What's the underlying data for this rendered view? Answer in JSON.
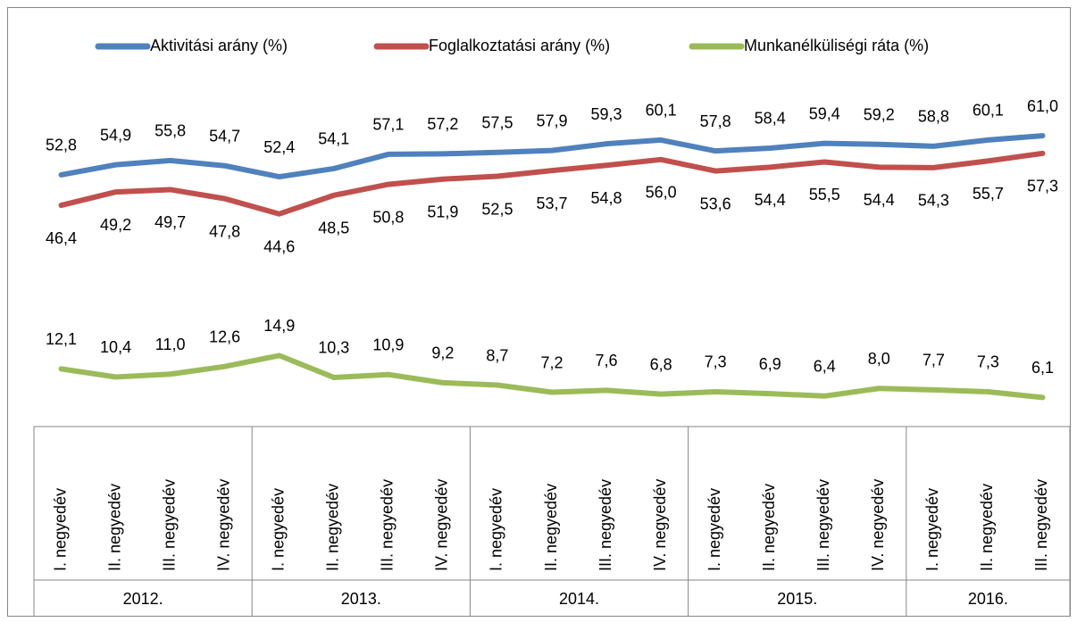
{
  "chart_data": {
    "type": "line",
    "groups": [
      {
        "label": "2012.",
        "categories": [
          "I. negyedév",
          "II. negyedév",
          "III. negyedév",
          "IV. negyedév"
        ]
      },
      {
        "label": "2013.",
        "categories": [
          "I. negyedév",
          "II. negyedév",
          "III. negyedév",
          "IV. negyedév"
        ]
      },
      {
        "label": "2014.",
        "categories": [
          "I. negyedév",
          "II. negyedév",
          "III. negyedév",
          "IV. negyedév"
        ]
      },
      {
        "label": "2015.",
        "categories": [
          "I. negyedév",
          "II. negyedév",
          "III. negyedév",
          "IV. negyedév"
        ]
      },
      {
        "label": "2016.",
        "categories": [
          "I. negyedév",
          "II. negyedév",
          "III. negyedév"
        ]
      }
    ],
    "series": [
      {
        "name": "Aktivitási arány (%)",
        "color": "#4f81bd",
        "label_position": "above",
        "values": [
          52.8,
          54.9,
          55.8,
          54.7,
          52.4,
          54.1,
          57.1,
          57.2,
          57.5,
          57.9,
          59.3,
          60.1,
          57.8,
          58.4,
          59.4,
          59.2,
          58.8,
          60.1,
          61.0
        ],
        "value_labels": [
          "52,8",
          "54,9",
          "55,8",
          "54,7",
          "52,4",
          "54,1",
          "57,1",
          "57,2",
          "57,5",
          "57,9",
          "59,3",
          "60,1",
          "57,8",
          "58,4",
          "59,4",
          "59,2",
          "58,8",
          "60,1",
          "61,0"
        ]
      },
      {
        "name": "Foglalkoztatási arány (%)",
        "color": "#c0504d",
        "label_position": "below",
        "values": [
          46.4,
          49.2,
          49.7,
          47.8,
          44.6,
          48.5,
          50.8,
          51.9,
          52.5,
          53.7,
          54.8,
          56.0,
          53.6,
          54.4,
          55.5,
          54.4,
          54.3,
          55.7,
          57.3
        ],
        "value_labels": [
          "46,4",
          "49,2",
          "49,7",
          "47,8",
          "44,6",
          "48,5",
          "50,8",
          "51,9",
          "52,5",
          "53,7",
          "54,8",
          "56,0",
          "53,6",
          "54,4",
          "55,5",
          "54,4",
          "54,3",
          "55,7",
          "57,3"
        ]
      },
      {
        "name": "Munkanélküliségi ráta (%)",
        "color": "#9bbb59",
        "label_position": "above",
        "values": [
          12.1,
          10.4,
          11.0,
          12.6,
          14.9,
          10.3,
          10.9,
          9.2,
          8.7,
          7.2,
          7.6,
          6.8,
          7.3,
          6.9,
          6.4,
          8.0,
          7.7,
          7.3,
          6.1
        ],
        "value_labels": [
          "12,1",
          "10,4",
          "11,0",
          "12,6",
          "14,9",
          "10,3",
          "10,9",
          "9,2",
          "8,7",
          "7,2",
          "7,6",
          "6,8",
          "7,3",
          "6,9",
          "6,4",
          "8,0",
          "7,7",
          "7,3",
          "6,1"
        ]
      }
    ],
    "ylim": [
      0,
      70
    ],
    "legend": "top"
  }
}
